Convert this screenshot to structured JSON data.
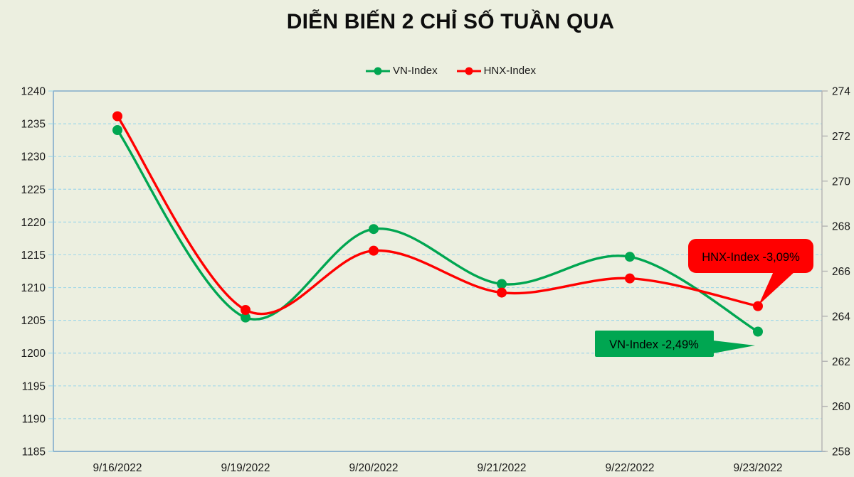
{
  "title": "DIỄN BIẾN 2 CHỈ SỐ TUẦN QUA",
  "chart_data": {
    "type": "line",
    "smooth": true,
    "legend_position": "top",
    "grid": "horizontal-dashed",
    "categories": [
      "9/16/2022",
      "9/19/2022",
      "9/20/2022",
      "9/21/2022",
      "9/22/2022",
      "9/23/2022"
    ],
    "series": [
      {
        "name": "VN-Index",
        "axis": "left",
        "color": "#00A651",
        "values": [
          1234.03,
          1205.43,
          1218.93,
          1210.55,
          1214.7,
          1203.28
        ]
      },
      {
        "name": "HNX-Index",
        "axis": "right",
        "color": "#FF0000",
        "values": [
          272.88,
          264.28,
          266.91,
          265.05,
          265.68,
          264.45
        ]
      }
    ],
    "y_left": {
      "min": 1185,
      "max": 1240,
      "step": 5,
      "ticks": [
        "1240",
        "1235",
        "1230",
        "1225",
        "1220",
        "1215",
        "1210",
        "1205",
        "1200",
        "1195",
        "1190",
        "1185"
      ]
    },
    "y_right": {
      "min": 258,
      "max": 274,
      "step": 2,
      "ticks": [
        "274",
        "272",
        "270",
        "268",
        "266",
        "264",
        "262",
        "260",
        "258"
      ]
    },
    "callouts": [
      {
        "series": "HNX-Index",
        "text": "HNX-Index -3,09%",
        "fill": "#FF0000",
        "text_color": "#000000"
      },
      {
        "series": "VN-Index",
        "text": "VN-Index -2,49%",
        "fill": "#00A651",
        "text_color": "#000000"
      }
    ],
    "colors": {
      "background": "#ECEFE0",
      "gridline": "#A3D8E8",
      "plot_border": "#82ABCB",
      "right_axis": "#B3B3B3",
      "axis_text": "#1A1A1A",
      "title_text": "#0D0D0D"
    }
  }
}
